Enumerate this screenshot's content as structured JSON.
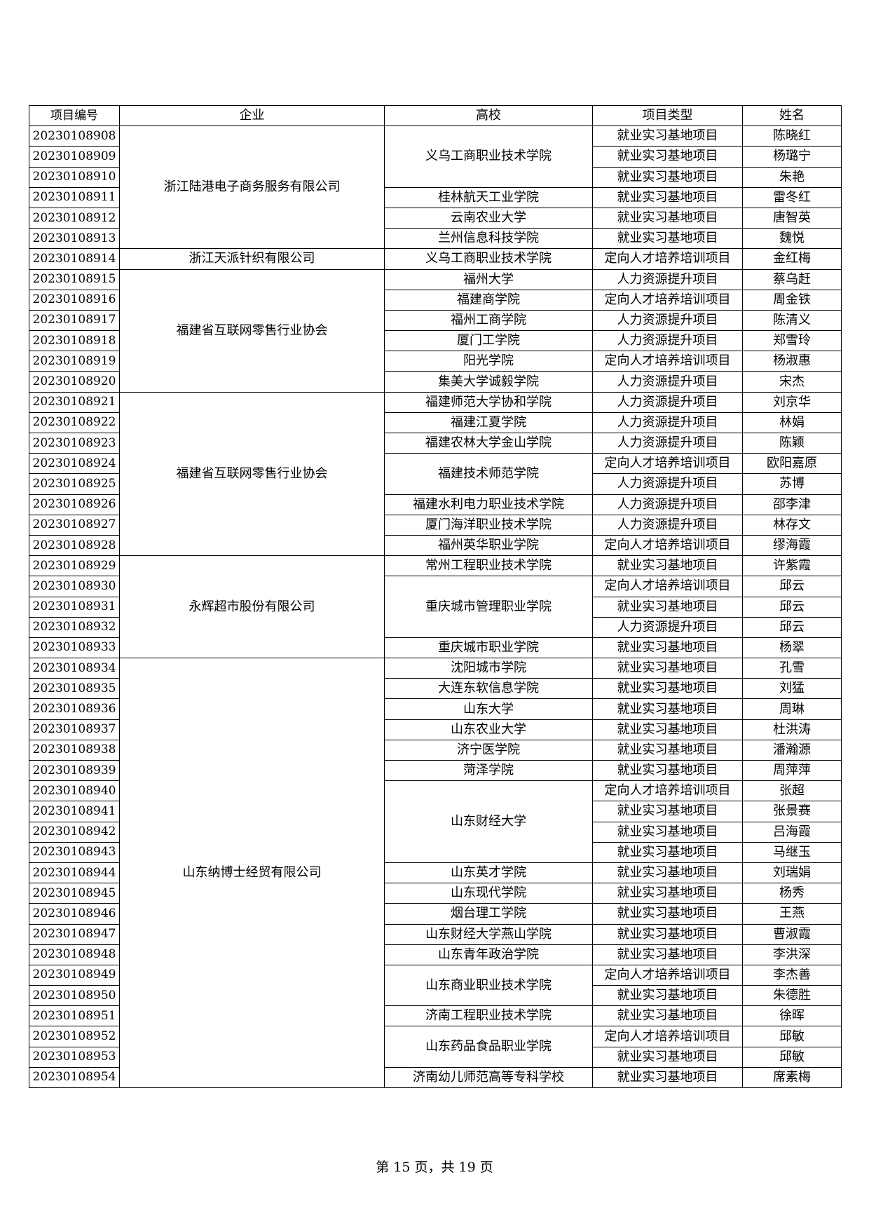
{
  "table": {
    "headers": [
      "项目编号",
      "企业",
      "高校",
      "项目类型",
      "姓名"
    ],
    "enterprises": [
      {
        "name": "浙江陆港电子商务服务有限公司",
        "schools": [
          {
            "name": "义乌工商职业技术学院",
            "entries": [
              {
                "id": "20230108908",
                "type": "就业实习基地项目",
                "person": "陈晓红"
              },
              {
                "id": "20230108909",
                "type": "就业实习基地项目",
                "person": "杨璐宁"
              },
              {
                "id": "20230108910",
                "type": "就业实习基地项目",
                "person": "朱艳"
              }
            ]
          },
          {
            "name": "桂林航天工业学院",
            "entries": [
              {
                "id": "20230108911",
                "type": "就业实习基地项目",
                "person": "雷冬红"
              }
            ]
          },
          {
            "name": "云南农业大学",
            "entries": [
              {
                "id": "20230108912",
                "type": "就业实习基地项目",
                "person": "唐智英"
              }
            ]
          },
          {
            "name": "兰州信息科技学院",
            "entries": [
              {
                "id": "20230108913",
                "type": "就业实习基地项目",
                "person": "魏悦"
              }
            ]
          }
        ]
      },
      {
        "name": "浙江天派针织有限公司",
        "schools": [
          {
            "name": "义乌工商职业技术学院",
            "entries": [
              {
                "id": "20230108914",
                "type": "定向人才培养培训项目",
                "person": "金红梅"
              }
            ]
          }
        ]
      },
      {
        "name": "福建省互联网零售行业协会",
        "schools": [
          {
            "name": "福州大学",
            "entries": [
              {
                "id": "20230108915",
                "type": "人力资源提升项目",
                "person": "蔡乌赶"
              }
            ]
          },
          {
            "name": "福建商学院",
            "entries": [
              {
                "id": "20230108916",
                "type": "定向人才培养培训项目",
                "person": "周金铁"
              }
            ]
          },
          {
            "name": "福州工商学院",
            "entries": [
              {
                "id": "20230108917",
                "type": "人力资源提升项目",
                "person": "陈清义"
              }
            ]
          },
          {
            "name": "厦门工学院",
            "entries": [
              {
                "id": "20230108918",
                "type": "人力资源提升项目",
                "person": "郑雪玲"
              }
            ]
          },
          {
            "name": "阳光学院",
            "entries": [
              {
                "id": "20230108919",
                "type": "定向人才培养培训项目",
                "person": "杨淑惠"
              }
            ]
          },
          {
            "name": "集美大学诚毅学院",
            "entries": [
              {
                "id": "20230108920",
                "type": "人力资源提升项目",
                "person": "宋杰"
              }
            ]
          }
        ]
      },
      {
        "name": "福建省互联网零售行业协会",
        "schools": [
          {
            "name": "福建师范大学协和学院",
            "entries": [
              {
                "id": "20230108921",
                "type": "人力资源提升项目",
                "person": "刘京华"
              }
            ]
          },
          {
            "name": "福建江夏学院",
            "entries": [
              {
                "id": "20230108922",
                "type": "人力资源提升项目",
                "person": "林娟"
              }
            ]
          },
          {
            "name": "福建农林大学金山学院",
            "entries": [
              {
                "id": "20230108923",
                "type": "人力资源提升项目",
                "person": "陈颖"
              }
            ]
          },
          {
            "name": "福建技术师范学院",
            "entries": [
              {
                "id": "20230108924",
                "type": "定向人才培养培训项目",
                "person": "欧阳嘉原"
              },
              {
                "id": "20230108925",
                "type": "人力资源提升项目",
                "person": "苏博"
              }
            ]
          },
          {
            "name": "福建水利电力职业技术学院",
            "entries": [
              {
                "id": "20230108926",
                "type": "人力资源提升项目",
                "person": "邵李津"
              }
            ]
          },
          {
            "name": "厦门海洋职业技术学院",
            "entries": [
              {
                "id": "20230108927",
                "type": "人力资源提升项目",
                "person": "林存文"
              }
            ]
          },
          {
            "name": "福州英华职业学院",
            "entries": [
              {
                "id": "20230108928",
                "type": "定向人才培养培训项目",
                "person": "缪海霞"
              }
            ]
          }
        ]
      },
      {
        "name": "永辉超市股份有限公司",
        "schools": [
          {
            "name": "常州工程职业技术学院",
            "entries": [
              {
                "id": "20230108929",
                "type": "就业实习基地项目",
                "person": "许紫霞"
              }
            ]
          },
          {
            "name": "重庆城市管理职业学院",
            "entries": [
              {
                "id": "20230108930",
                "type": "定向人才培养培训项目",
                "person": "邱云"
              },
              {
                "id": "20230108931",
                "type": "就业实习基地项目",
                "person": "邱云"
              },
              {
                "id": "20230108932",
                "type": "人力资源提升项目",
                "person": "邱云"
              }
            ]
          },
          {
            "name": "重庆城市职业学院",
            "entries": [
              {
                "id": "20230108933",
                "type": "就业实习基地项目",
                "person": "杨翠"
              }
            ]
          }
        ]
      },
      {
        "name": "山东纳博士经贸有限公司",
        "schools": [
          {
            "name": "沈阳城市学院",
            "entries": [
              {
                "id": "20230108934",
                "type": "就业实习基地项目",
                "person": "孔雪"
              }
            ]
          },
          {
            "name": "大连东软信息学院",
            "entries": [
              {
                "id": "20230108935",
                "type": "就业实习基地项目",
                "person": "刘猛"
              }
            ]
          },
          {
            "name": "山东大学",
            "entries": [
              {
                "id": "20230108936",
                "type": "就业实习基地项目",
                "person": "周琳"
              }
            ]
          },
          {
            "name": "山东农业大学",
            "entries": [
              {
                "id": "20230108937",
                "type": "就业实习基地项目",
                "person": "杜洪涛"
              }
            ]
          },
          {
            "name": "济宁医学院",
            "entries": [
              {
                "id": "20230108938",
                "type": "就业实习基地项目",
                "person": "潘瀚源"
              }
            ]
          },
          {
            "name": "菏泽学院",
            "entries": [
              {
                "id": "20230108939",
                "type": "就业实习基地项目",
                "person": "周萍萍"
              }
            ]
          },
          {
            "name": "山东财经大学",
            "entries": [
              {
                "id": "20230108940",
                "type": "定向人才培养培训项目",
                "person": "张超"
              },
              {
                "id": "20230108941",
                "type": "就业实习基地项目",
                "person": "张景赛"
              },
              {
                "id": "20230108942",
                "type": "就业实习基地项目",
                "person": "吕海霞"
              },
              {
                "id": "20230108943",
                "type": "就业实习基地项目",
                "person": "马继玉"
              }
            ]
          },
          {
            "name": "山东英才学院",
            "entries": [
              {
                "id": "20230108944",
                "type": "就业实习基地项目",
                "person": "刘瑞娟"
              }
            ]
          },
          {
            "name": "山东现代学院",
            "entries": [
              {
                "id": "20230108945",
                "type": "就业实习基地项目",
                "person": "杨秀"
              }
            ]
          },
          {
            "name": "烟台理工学院",
            "entries": [
              {
                "id": "20230108946",
                "type": "就业实习基地项目",
                "person": "王燕"
              }
            ]
          },
          {
            "name": "山东财经大学燕山学院",
            "entries": [
              {
                "id": "20230108947",
                "type": "就业实习基地项目",
                "person": "曹淑霞"
              }
            ]
          },
          {
            "name": "山东青年政治学院",
            "entries": [
              {
                "id": "20230108948",
                "type": "就业实习基地项目",
                "person": "李洪深"
              }
            ]
          },
          {
            "name": "山东商业职业技术学院",
            "entries": [
              {
                "id": "20230108949",
                "type": "定向人才培养培训项目",
                "person": "李杰善"
              },
              {
                "id": "20230108950",
                "type": "就业实习基地项目",
                "person": "朱德胜"
              }
            ]
          },
          {
            "name": "济南工程职业技术学院",
            "entries": [
              {
                "id": "20230108951",
                "type": "就业实习基地项目",
                "person": "徐晖"
              }
            ]
          },
          {
            "name": "山东药品食品职业学院",
            "entries": [
              {
                "id": "20230108952",
                "type": "定向人才培养培训项目",
                "person": "邱敏"
              },
              {
                "id": "20230108953",
                "type": "就业实习基地项目",
                "person": "邱敏"
              }
            ]
          },
          {
            "name": "济南幼儿师范高等专科学校",
            "entries": [
              {
                "id": "20230108954",
                "type": "就业实习基地项目",
                "person": "席素梅"
              }
            ]
          }
        ]
      }
    ]
  },
  "footer": {
    "page_label": "第 15 页，共 19 页"
  }
}
